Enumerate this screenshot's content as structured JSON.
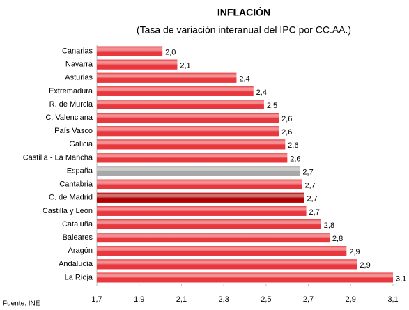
{
  "chart_data": {
    "type": "hbar",
    "title": "INFLACIÓN",
    "subtitle": "(Tasa de variación interanual del IPC por CC.AA.)",
    "source": "Fuente: INE",
    "categories": [
      "Canarias",
      "Navarra",
      "Asturias",
      "Extremadura",
      "R. de Murcia",
      "C. Valenciana",
      "País Vasco",
      "Galicia",
      "Castilla - La Mancha",
      "España",
      "Cantabria",
      "C. de Madrid",
      "Castilla y León",
      "Cataluña",
      "Baleares",
      "Aragón",
      "Andalucía",
      "La Rioja"
    ],
    "values": [
      2.01,
      2.08,
      2.36,
      2.44,
      2.49,
      2.56,
      2.56,
      2.59,
      2.6,
      2.66,
      2.67,
      2.68,
      2.69,
      2.76,
      2.8,
      2.88,
      2.93,
      3.1
    ],
    "value_labels": [
      "2,0",
      "2,1",
      "2,4",
      "2,4",
      "2,5",
      "2,6",
      "2,6",
      "2,6",
      "2,6",
      "2,7",
      "2,7",
      "2,7",
      "2,7",
      "2,8",
      "2,8",
      "2,9",
      "2,9",
      "3,1"
    ],
    "colors": [
      "#e8383d",
      "#e8383d",
      "#e8383d",
      "#e8383d",
      "#e8383d",
      "#e8383d",
      "#e8383d",
      "#e8383d",
      "#e8383d",
      "#a8a8a8",
      "#e8383d",
      "#b00000",
      "#e8383d",
      "#e8383d",
      "#e8383d",
      "#e8383d",
      "#e8383d",
      "#e8383d"
    ],
    "xlim": [
      1.7,
      3.1
    ],
    "xticks": [
      {
        "value": 1.7,
        "label": "1,7"
      },
      {
        "value": 1.9,
        "label": "1,9"
      },
      {
        "value": 2.1,
        "label": "2,1"
      },
      {
        "value": 2.3,
        "label": "2,3"
      },
      {
        "value": 2.5,
        "label": "2,5"
      },
      {
        "value": 2.7,
        "label": "2,7"
      },
      {
        "value": 2.9,
        "label": "2,9"
      },
      {
        "value": 3.1,
        "label": "3,1"
      }
    ]
  }
}
